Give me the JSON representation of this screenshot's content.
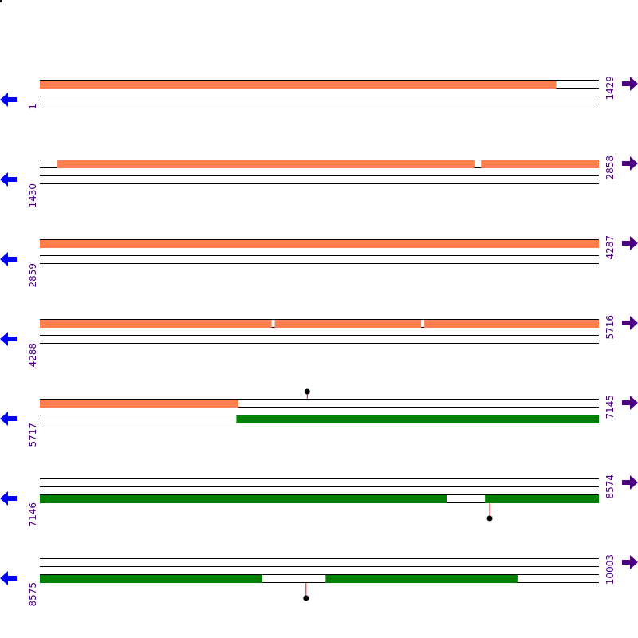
{
  "colors": {
    "forward_feature": "#ff7f50",
    "reverse_feature": "#008000",
    "line": "#000000",
    "label": "#4b0082",
    "left_arrow": "#0000ff",
    "right_arrow": "#4b0082",
    "marker_stem": "#ff0000",
    "marker_head": "#000000"
  },
  "icons": {
    "left": "left-arrow-icon",
    "right": "right-arrow-icon"
  },
  "rows": [
    {
      "start_label": "1",
      "end_label": "1429",
      "start": 1,
      "end": 1429,
      "features": [
        {
          "strand": "forward",
          "from": 1,
          "to": 1320
        }
      ],
      "markers": []
    },
    {
      "start_label": "1430",
      "end_label": "2858",
      "start": 1430,
      "end": 2858,
      "features": [
        {
          "strand": "forward",
          "from": 1475,
          "to": 2540
        },
        {
          "strand": "forward",
          "from": 2557,
          "to": 2858
        }
      ],
      "markers": []
    },
    {
      "start_label": "2859",
      "end_label": "4287",
      "start": 2859,
      "end": 4287,
      "features": [
        {
          "strand": "forward",
          "from": 2859,
          "to": 4287
        }
      ],
      "markers": []
    },
    {
      "start_label": "4288",
      "end_label": "5716",
      "start": 4288,
      "end": 5716,
      "features": [
        {
          "strand": "forward",
          "from": 4288,
          "to": 4880
        },
        {
          "strand": "forward",
          "from": 4888,
          "to": 5262
        },
        {
          "strand": "forward",
          "from": 5270,
          "to": 5716
        }
      ],
      "markers": []
    },
    {
      "start_label": "5717",
      "end_label": "7145",
      "start": 5717,
      "end": 7145,
      "features": [
        {
          "strand": "forward",
          "from": 5717,
          "to": 6224
        },
        {
          "strand": "reverse",
          "from": 6219,
          "to": 7145
        }
      ],
      "markers": [
        {
          "pos": 6400,
          "side": "top"
        }
      ]
    },
    {
      "start_label": "7146",
      "end_label": "8574",
      "start": 7146,
      "end": 8574,
      "features": [
        {
          "strand": "reverse",
          "from": 7146,
          "to": 8185
        },
        {
          "strand": "reverse",
          "from": 8283,
          "to": 8574
        }
      ],
      "markers": [
        {
          "pos": 8295,
          "side": "bottom"
        }
      ]
    },
    {
      "start_label": "8575",
      "end_label": "10003",
      "start": 8575,
      "end": 10003,
      "features": [
        {
          "strand": "reverse",
          "from": 8575,
          "to": 9143
        },
        {
          "strand": "reverse",
          "from": 9305,
          "to": 9795
        }
      ],
      "markers": [
        {
          "pos": 9255,
          "side": "bottom"
        }
      ]
    }
  ]
}
